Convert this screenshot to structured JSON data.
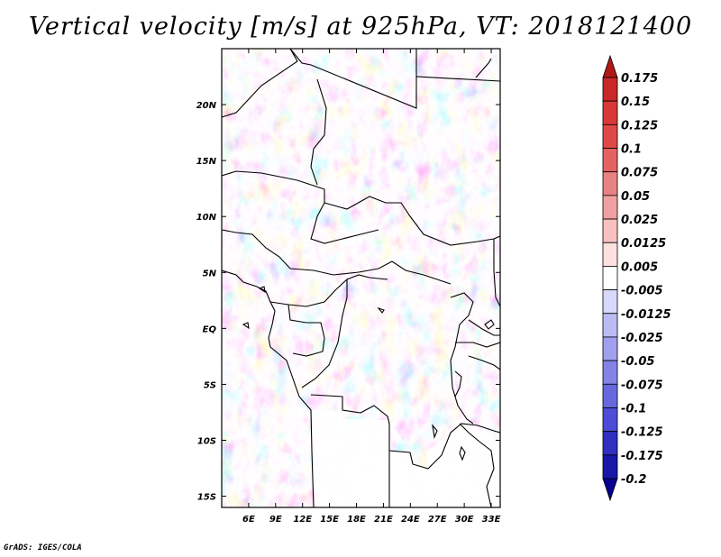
{
  "title": "Vertical velocity [m/s] at 925hPa, VT: 2018121400",
  "footer": "GrADS: IGES/COLA",
  "map": {
    "lon_range": [
      3,
      34
    ],
    "lat_range": [
      -16,
      25
    ],
    "lon_ticks": [
      "6E",
      "9E",
      "12E",
      "15E",
      "18E",
      "21E",
      "24E",
      "27E",
      "30E",
      "33E"
    ],
    "lat_ticks": [
      "20N",
      "15N",
      "10N",
      "5N",
      "EQ",
      "5S",
      "10S",
      "15S"
    ]
  },
  "colorbar": {
    "labels": [
      "0.175",
      "0.15",
      "0.125",
      "0.1",
      "0.075",
      "0.05",
      "0.025",
      "0.0125",
      "0.005",
      "-0.005",
      "-0.0125",
      "-0.025",
      "-0.05",
      "-0.075",
      "-0.1",
      "-0.125",
      "-0.175",
      "-0.2"
    ],
    "colors": [
      "#b01818",
      "#c82828",
      "#d83838",
      "#e04848",
      "#e46262",
      "#e88282",
      "#f0a0a0",
      "#f8c0c0",
      "#fde0e0",
      "#ffffff",
      "#d8d8fa",
      "#bcbcf4",
      "#a0a0ee",
      "#8484e6",
      "#6868de",
      "#4c4cd6",
      "#3030c0",
      "#1818a8",
      "#080090"
    ]
  }
}
